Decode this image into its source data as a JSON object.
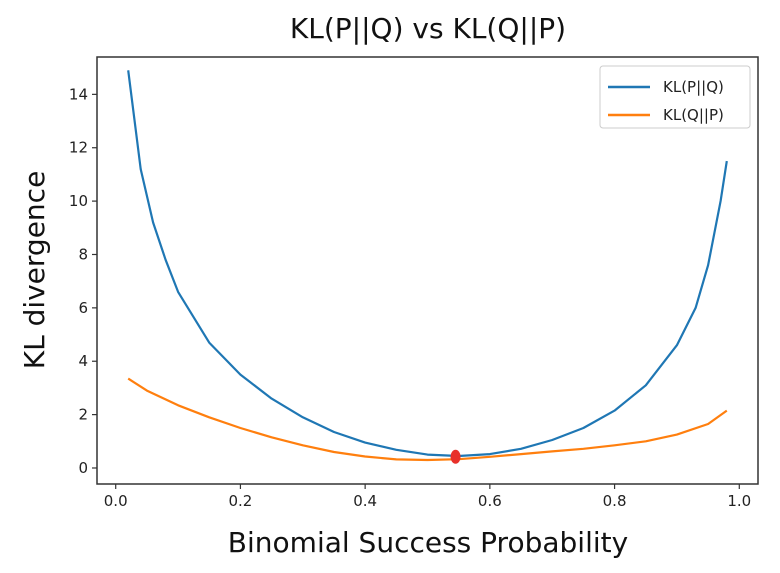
{
  "chart_data": {
    "type": "line",
    "title": "KL(P||Q) vs KL(Q||P)",
    "xlabel": "Binomial Success Probability",
    "ylabel": "KL divergence",
    "xlim": [
      -0.03,
      1.03
    ],
    "ylim": [
      -0.6,
      15.4
    ],
    "xticks": [
      "0.0",
      "0.2",
      "0.4",
      "0.6",
      "0.8",
      "1.0"
    ],
    "yticks": [
      "0",
      "2",
      "4",
      "6",
      "8",
      "10",
      "12",
      "14"
    ],
    "grid": false,
    "legend_position": "top-right",
    "series": [
      {
        "name": "KL(P||Q)",
        "color": "#1f77b4",
        "x": [
          0.02,
          0.04,
          0.06,
          0.08,
          0.1,
          0.15,
          0.2,
          0.25,
          0.3,
          0.35,
          0.4,
          0.45,
          0.5,
          0.55,
          0.6,
          0.65,
          0.7,
          0.75,
          0.8,
          0.85,
          0.9,
          0.93,
          0.95,
          0.97,
          0.98
        ],
        "y": [
          14.9,
          11.2,
          9.2,
          7.8,
          6.6,
          4.7,
          3.5,
          2.6,
          1.9,
          1.35,
          0.95,
          0.68,
          0.5,
          0.45,
          0.52,
          0.72,
          1.05,
          1.5,
          2.15,
          3.1,
          4.6,
          6.0,
          7.6,
          10.0,
          11.5
        ]
      },
      {
        "name": "KL(Q||P)",
        "color": "#ff7f0e",
        "x": [
          0.02,
          0.05,
          0.1,
          0.15,
          0.2,
          0.25,
          0.3,
          0.35,
          0.4,
          0.45,
          0.5,
          0.55,
          0.6,
          0.65,
          0.7,
          0.75,
          0.8,
          0.85,
          0.9,
          0.95,
          0.98
        ],
        "y": [
          3.35,
          2.9,
          2.35,
          1.9,
          1.5,
          1.15,
          0.85,
          0.6,
          0.43,
          0.32,
          0.3,
          0.33,
          0.42,
          0.52,
          0.62,
          0.72,
          0.85,
          1.0,
          1.25,
          1.65,
          2.15
        ]
      }
    ],
    "markers": [
      {
        "x": 0.545,
        "y": 0.42,
        "color": "#e8302a"
      }
    ]
  }
}
